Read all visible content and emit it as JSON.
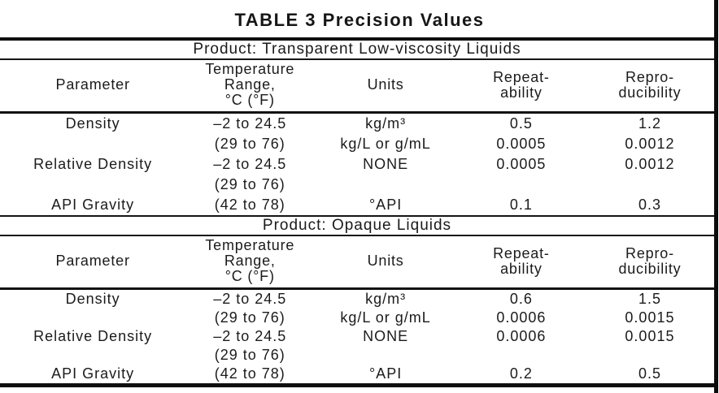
{
  "title": "TABLE 3 Precision Values",
  "columns": {
    "parameter": "Parameter",
    "temperature": "Temperature\nRange,\n°C (°F)",
    "units": "Units",
    "repeatability": "Repeat-\nability",
    "reproducibility": "Repro-\nducibility"
  },
  "sections": [
    {
      "product": "Product: Transparent Low-viscosity Liquids",
      "rows": [
        {
          "parameter": "Density",
          "temp": "–2 to 24.5",
          "units": "kg/m³",
          "repeatability": "0.5",
          "reproducibility": "1.2"
        },
        {
          "parameter": "",
          "temp": "(29 to 76)",
          "units": "kg/L or g/mL",
          "repeatability": "0.0005",
          "reproducibility": "0.0012"
        },
        {
          "parameter": "Relative Density",
          "temp": "–2 to 24.5",
          "units": "NONE",
          "repeatability": "0.0005",
          "reproducibility": "0.0012"
        },
        {
          "parameter": "",
          "temp": "(29 to 76)",
          "units": "",
          "repeatability": "",
          "reproducibility": ""
        },
        {
          "parameter": "API Gravity",
          "temp": "(42 to 78)",
          "units": "°API",
          "repeatability": "0.1",
          "reproducibility": "0.3"
        }
      ]
    },
    {
      "product": "Product: Opaque Liquids",
      "rows": [
        {
          "parameter": "Density",
          "temp": "–2 to 24.5",
          "units": "kg/m³",
          "repeatability": "0.6",
          "reproducibility": "1.5"
        },
        {
          "parameter": "",
          "temp": "(29 to 76)",
          "units": "kg/L or g/mL",
          "repeatability": "0.0006",
          "reproducibility": "0.0015"
        },
        {
          "parameter": "Relative Density",
          "temp": "–2 to 24.5",
          "units": "NONE",
          "repeatability": "0.0006",
          "reproducibility": "0.0015"
        },
        {
          "parameter": "",
          "temp": "(29 to 76)",
          "units": "",
          "repeatability": "",
          "reproducibility": ""
        },
        {
          "parameter": "API Gravity",
          "temp": "(42 to 78)",
          "units": "°API",
          "repeatability": "0.2",
          "reproducibility": "0.5"
        }
      ]
    }
  ],
  "colors": {
    "text": "#1c1c1c",
    "rule": "#111111",
    "background": "#ffffff"
  }
}
